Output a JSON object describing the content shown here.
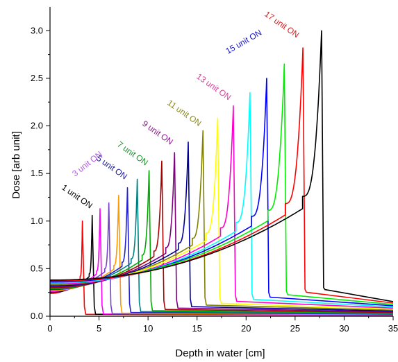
{
  "chart_data": {
    "type": "line",
    "title": "",
    "xlabel": "Depth in water [cm]",
    "ylabel": "Dose [arb unit]",
    "xlim": [
      0,
      35
    ],
    "ylim": [
      0,
      3.25
    ],
    "x_ticks": [
      "0",
      "5",
      "10",
      "15",
      "20",
      "25",
      "30",
      "35"
    ],
    "y_ticks": [
      "0.0",
      "0.5",
      "1.0",
      "1.5",
      "2.0",
      "2.5",
      "3.0"
    ],
    "grid": false,
    "legend": "none",
    "series_labels": [
      {
        "text": "1 unit ON",
        "color": "#000000"
      },
      {
        "text": "3 unit ON",
        "color": "#b15ae8"
      },
      {
        "text": "5 unit ON",
        "color": "#1a1a9e"
      },
      {
        "text": "7 unit ON",
        "color": "#1e8f2e"
      },
      {
        "text": "9 unit ON",
        "color": "#8b1a8b"
      },
      {
        "text": "11 unit ON",
        "color": "#8a8a1a"
      },
      {
        "text": "13  unit ON",
        "color": "#e040a0"
      },
      {
        "text": "15 unit ON",
        "color": "#1a1acc"
      },
      {
        "text": "17 unit ON",
        "color": "#e01a1a"
      }
    ],
    "series": [
      {
        "peak_depth": 3.3,
        "peak_dose": 1.0,
        "entrance_dose": 0.24,
        "color": "#ff0000"
      },
      {
        "peak_depth": 4.3,
        "peak_dose": 1.06,
        "entrance_dose": 0.25,
        "color": "#000000"
      },
      {
        "peak_depth": 5.1,
        "peak_dose": 1.13,
        "entrance_dose": 0.26,
        "color": "#ff00ff"
      },
      {
        "peak_depth": 6.0,
        "peak_dose": 1.19,
        "entrance_dose": 0.27,
        "color": "#7744cc"
      },
      {
        "peak_depth": 7.0,
        "peak_dose": 1.27,
        "entrance_dose": 0.27,
        "color": "#ff9900"
      },
      {
        "peak_depth": 7.9,
        "peak_dose": 1.35,
        "entrance_dose": 0.28,
        "color": "#2222cc"
      },
      {
        "peak_depth": 8.9,
        "peak_dose": 1.44,
        "entrance_dose": 0.29,
        "color": "#008080"
      },
      {
        "peak_depth": 10.1,
        "peak_dose": 1.53,
        "entrance_dose": 0.29,
        "color": "#00aa00"
      },
      {
        "peak_depth": 11.4,
        "peak_dose": 1.63,
        "entrance_dose": 0.3,
        "color": "#aa0000"
      },
      {
        "peak_depth": 12.7,
        "peak_dose": 1.72,
        "entrance_dose": 0.31,
        "color": "#800080"
      },
      {
        "peak_depth": 14.1,
        "peak_dose": 1.83,
        "entrance_dose": 0.32,
        "color": "#000099"
      },
      {
        "peak_depth": 15.6,
        "peak_dose": 1.95,
        "entrance_dose": 0.33,
        "color": "#808000"
      },
      {
        "peak_depth": 17.1,
        "peak_dose": 2.08,
        "entrance_dose": 0.34,
        "color": "#ffff00"
      },
      {
        "peak_depth": 18.7,
        "peak_dose": 2.21,
        "entrance_dose": 0.34,
        "color": "#ff00cc"
      },
      {
        "peak_depth": 20.4,
        "peak_dose": 2.35,
        "entrance_dose": 0.35,
        "color": "#00ffff"
      },
      {
        "peak_depth": 22.1,
        "peak_dose": 2.5,
        "entrance_dose": 0.36,
        "color": "#0000ff"
      },
      {
        "peak_depth": 23.9,
        "peak_dose": 2.65,
        "entrance_dose": 0.37,
        "color": "#00ee00"
      },
      {
        "peak_depth": 25.8,
        "peak_dose": 2.82,
        "entrance_dose": 0.37,
        "color": "#ff0000"
      },
      {
        "peak_depth": 27.7,
        "peak_dose": 3.0,
        "entrance_dose": 0.38,
        "color": "#000000"
      }
    ]
  }
}
